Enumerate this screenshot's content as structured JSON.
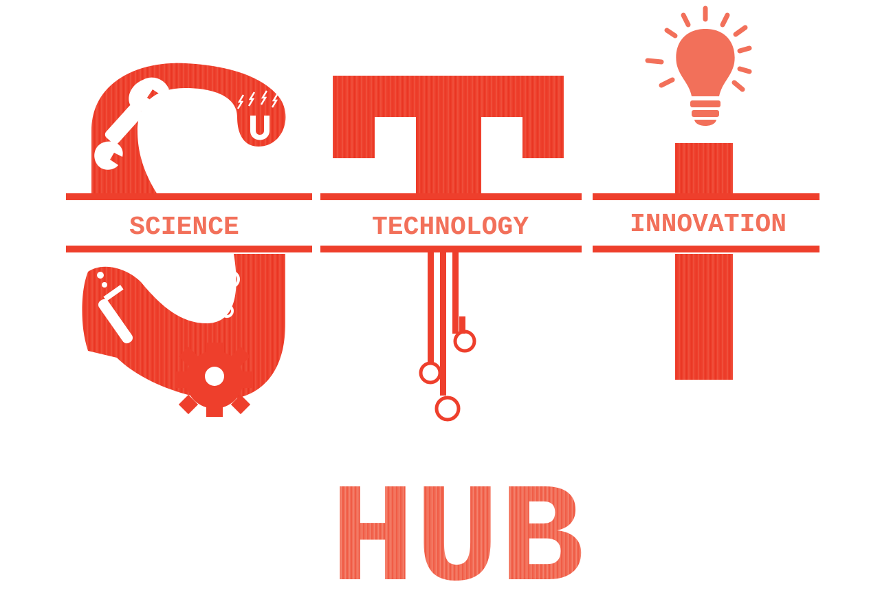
{
  "logo": {
    "bands": [
      {
        "label": "SCIENCE"
      },
      {
        "label": "TECHNOLOGY"
      },
      {
        "label": "INNOVATION"
      }
    ],
    "hub_label": "HUB",
    "icons": [
      "wrench-icon",
      "magnet-icon",
      "test-tube-icon",
      "molecule-icon",
      "gear-icon",
      "circuit-icon",
      "lightbulb-icon"
    ]
  },
  "colors": {
    "primary": "#ee3f2c",
    "light": "#f2705a",
    "background": "#ffffff"
  }
}
